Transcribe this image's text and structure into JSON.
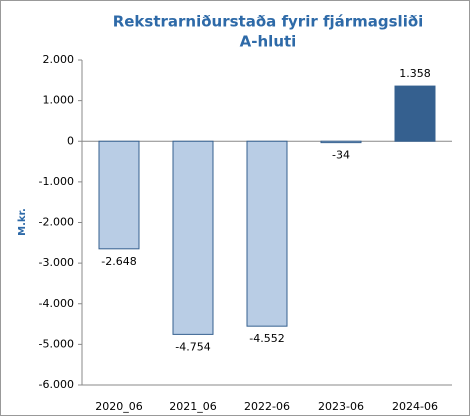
{
  "chart_data": {
    "type": "bar",
    "title": [
      "Rekstrarniðurstaða fyrir fjármagsliði",
      "A-hluti"
    ],
    "y_label": "M.kr.",
    "categories": [
      "2020_06",
      "2021_06",
      "2022-06",
      "2023-06",
      "2024-06"
    ],
    "values": [
      -2648,
      -4754,
      -4552,
      -34,
      1358
    ],
    "value_labels": [
      "-2.648",
      "-4.754",
      "-4.552",
      "-34",
      "1.358"
    ],
    "colors": [
      "#b9cde5",
      "#b9cde5",
      "#b9cde5",
      "#b9cde5",
      "#35608f"
    ],
    "ylim": [
      -6000,
      2000
    ],
    "yticks": [
      {
        "value": 2000,
        "label": "2.000"
      },
      {
        "value": 1000,
        "label": "1.000"
      },
      0,
      {
        "value": -1000,
        "label": "-1.000"
      },
      {
        "value": -2000,
        "label": "-2.000"
      },
      {
        "value": -3000,
        "label": "-3.000"
      },
      {
        "value": -4000,
        "label": "-4.000"
      },
      {
        "value": -5000,
        "label": "-5.000"
      },
      {
        "value": -6000,
        "label": "-6.000"
      }
    ],
    "grid": false
  }
}
